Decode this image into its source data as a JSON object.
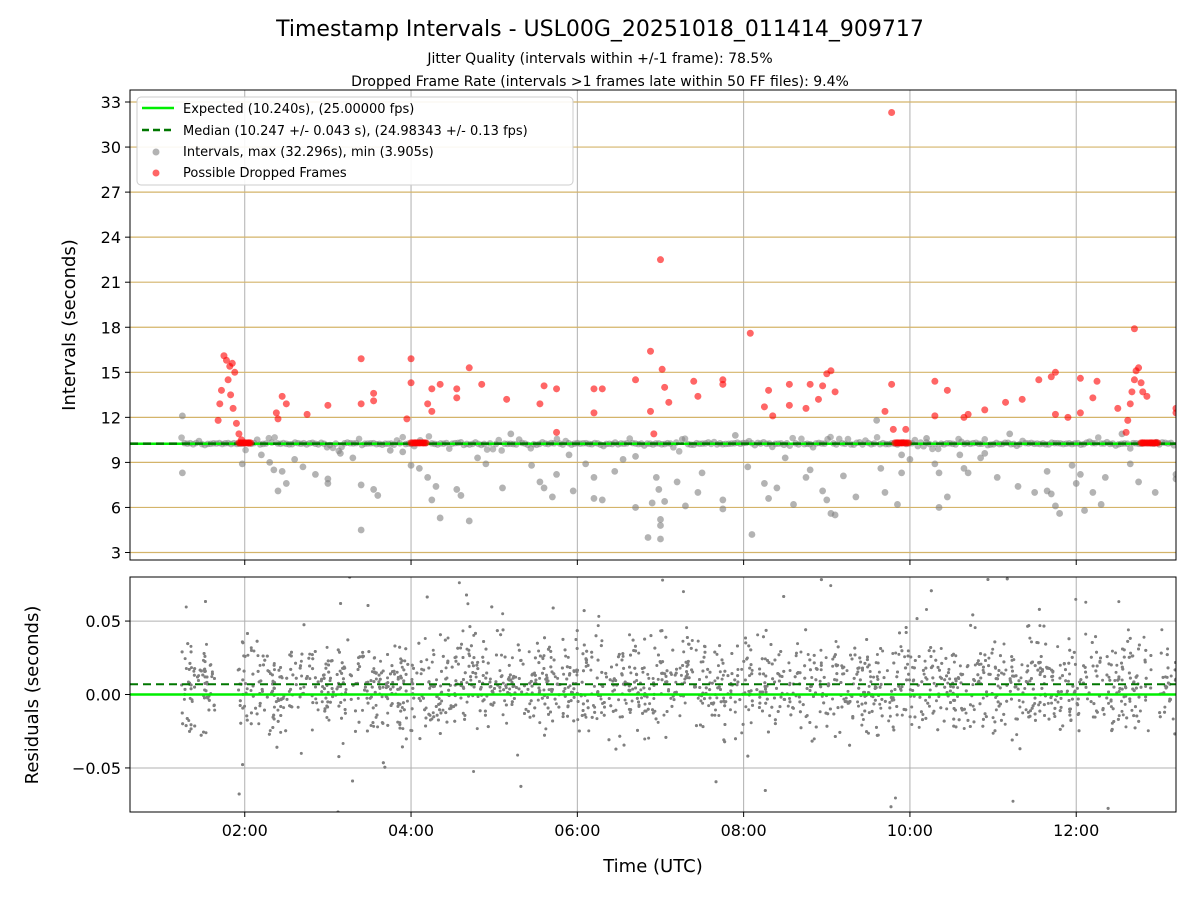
{
  "chart_data": {
    "type": "scatter",
    "title": "Timestamp Intervals - USL00G_20251018_011414_909717",
    "subtitle_lines": [
      "Jitter Quality (intervals within +/-1 frame): 78.5%",
      "Dropped Frame Rate (intervals >1 frames late within 50 FF files): 9.4%"
    ],
    "colors": {
      "expected": "#00ee00",
      "median": "#007700",
      "intervals": "#808080",
      "dropped": "#ff0000",
      "hgrid_top": "#d4b46a",
      "grid": "#b0b0b0"
    },
    "top_panel": {
      "ylabel": "Intervals (seconds)",
      "ylim": [
        2.5,
        33.8
      ],
      "yticks": [
        3,
        6,
        9,
        12,
        15,
        18,
        21,
        24,
        27,
        30,
        33
      ],
      "expected": 10.24,
      "median": 10.247,
      "legend_placement": "upper-left",
      "legend": {
        "expected": "Expected (10.240s), (25.00000 fps)",
        "median": "Median (10.247 +/- 0.043 s), (24.98343 +/- 0.13 fps)",
        "intervals": "Intervals, max (32.296s), min (3.905s)",
        "dropped": "Possible Dropped Frames"
      },
      "intervals_points": [
        [
          1.25,
          12.1
        ],
        [
          1.25,
          8.3
        ],
        [
          1.97,
          8.9
        ],
        [
          2.2,
          9.5
        ],
        [
          2.3,
          9.0
        ],
        [
          2.35,
          8.5
        ],
        [
          2.4,
          7.1
        ],
        [
          2.45,
          8.4
        ],
        [
          2.5,
          7.6
        ],
        [
          2.6,
          9.2
        ],
        [
          2.7,
          8.7
        ],
        [
          2.85,
          8.2
        ],
        [
          3.0,
          7.9
        ],
        [
          3.0,
          7.6
        ],
        [
          3.15,
          9.6
        ],
        [
          3.3,
          9.3
        ],
        [
          3.4,
          7.5
        ],
        [
          3.4,
          4.5
        ],
        [
          3.55,
          7.2
        ],
        [
          3.6,
          6.8
        ],
        [
          3.75,
          9.8
        ],
        [
          3.9,
          9.7
        ],
        [
          4.0,
          8.8
        ],
        [
          4.1,
          8.6
        ],
        [
          4.2,
          8.0
        ],
        [
          4.25,
          6.5
        ],
        [
          4.3,
          7.4
        ],
        [
          4.35,
          5.3
        ],
        [
          4.55,
          7.2
        ],
        [
          4.6,
          6.8
        ],
        [
          4.7,
          5.1
        ],
        [
          4.8,
          9.3
        ],
        [
          4.9,
          8.9
        ],
        [
          5.1,
          7.3
        ],
        [
          5.2,
          10.9
        ],
        [
          5.45,
          8.8
        ],
        [
          5.55,
          7.7
        ],
        [
          5.6,
          7.3
        ],
        [
          5.7,
          6.7
        ],
        [
          5.75,
          8.2
        ],
        [
          5.9,
          9.5
        ],
        [
          5.95,
          7.1
        ],
        [
          6.1,
          8.9
        ],
        [
          6.2,
          8.0
        ],
        [
          6.2,
          6.6
        ],
        [
          6.3,
          6.5
        ],
        [
          6.45,
          8.4
        ],
        [
          6.55,
          9.2
        ],
        [
          6.7,
          6.0
        ],
        [
          6.7,
          9.4
        ],
        [
          6.85,
          4.0
        ],
        [
          6.9,
          6.3
        ],
        [
          6.95,
          8.0
        ],
        [
          6.98,
          7.2
        ],
        [
          7.0,
          5.2
        ],
        [
          7.0,
          4.8
        ],
        [
          7.0,
          3.9
        ],
        [
          7.05,
          6.4
        ],
        [
          7.2,
          7.7
        ],
        [
          7.3,
          6.1
        ],
        [
          7.45,
          7.0
        ],
        [
          7.5,
          8.3
        ],
        [
          7.75,
          6.5
        ],
        [
          7.75,
          5.9
        ],
        [
          7.9,
          10.8
        ],
        [
          8.05,
          8.7
        ],
        [
          8.1,
          4.2
        ],
        [
          8.25,
          7.6
        ],
        [
          8.3,
          6.6
        ],
        [
          8.4,
          7.3
        ],
        [
          8.5,
          9.3
        ],
        [
          8.6,
          6.2
        ],
        [
          8.75,
          8.0
        ],
        [
          8.8,
          8.5
        ],
        [
          8.95,
          7.1
        ],
        [
          9.0,
          6.5
        ],
        [
          9.05,
          5.6
        ],
        [
          9.1,
          5.5
        ],
        [
          9.2,
          8.1
        ],
        [
          9.35,
          6.7
        ],
        [
          9.6,
          11.8
        ],
        [
          9.65,
          8.6
        ],
        [
          9.7,
          7.0
        ],
        [
          9.9,
          9.5
        ],
        [
          9.9,
          8.3
        ],
        [
          9.85,
          6.2
        ],
        [
          10.0,
          9.2
        ],
        [
          10.2,
          10.6
        ],
        [
          10.3,
          8.9
        ],
        [
          10.35,
          8.3
        ],
        [
          10.35,
          6.0
        ],
        [
          10.45,
          6.7
        ],
        [
          10.6,
          9.5
        ],
        [
          10.65,
          8.6
        ],
        [
          10.7,
          8.3
        ],
        [
          10.85,
          9.3
        ],
        [
          10.9,
          9.6
        ],
        [
          11.05,
          8.0
        ],
        [
          11.2,
          10.9
        ],
        [
          11.3,
          7.4
        ],
        [
          11.5,
          7.0
        ],
        [
          11.65,
          8.4
        ],
        [
          11.65,
          7.1
        ],
        [
          11.7,
          6.9
        ],
        [
          11.75,
          6.1
        ],
        [
          11.8,
          5.6
        ],
        [
          11.95,
          8.8
        ],
        [
          12.0,
          7.6
        ],
        [
          12.05,
          8.2
        ],
        [
          12.1,
          5.8
        ],
        [
          12.2,
          7.0
        ],
        [
          12.3,
          6.2
        ],
        [
          12.35,
          8.0
        ],
        [
          12.55,
          10.9
        ],
        [
          12.65,
          8.9
        ],
        [
          12.75,
          7.7
        ],
        [
          12.95,
          7.0
        ],
        [
          13.2,
          7.9
        ],
        [
          13.2,
          8.2
        ]
      ],
      "dropped_points": [
        [
          1.75,
          16.1
        ],
        [
          1.78,
          15.8
        ],
        [
          1.82,
          15.4
        ],
        [
          1.85,
          15.6
        ],
        [
          1.88,
          15.0
        ],
        [
          1.72,
          13.8
        ],
        [
          1.7,
          12.9
        ],
        [
          1.68,
          11.8
        ],
        [
          1.8,
          14.5
        ],
        [
          1.83,
          13.5
        ],
        [
          1.86,
          12.6
        ],
        [
          1.9,
          11.6
        ],
        [
          1.93,
          10.9
        ],
        [
          1.96,
          10.5
        ],
        [
          2.0,
          10.3
        ],
        [
          2.05,
          10.3
        ],
        [
          2.38,
          12.3
        ],
        [
          2.4,
          11.9
        ],
        [
          2.45,
          13.4
        ],
        [
          2.5,
          12.9
        ],
        [
          2.75,
          12.2
        ],
        [
          3.0,
          12.8
        ],
        [
          3.4,
          15.9
        ],
        [
          3.4,
          12.9
        ],
        [
          3.55,
          13.6
        ],
        [
          3.55,
          13.1
        ],
        [
          3.95,
          11.9
        ],
        [
          4.0,
          15.9
        ],
        [
          4.0,
          14.3
        ],
        [
          4.05,
          10.3
        ],
        [
          4.1,
          10.3
        ],
        [
          4.15,
          10.3
        ],
        [
          4.2,
          12.9
        ],
        [
          4.25,
          13.9
        ],
        [
          4.25,
          12.4
        ],
        [
          4.35,
          14.2
        ],
        [
          4.55,
          13.9
        ],
        [
          4.55,
          13.3
        ],
        [
          4.7,
          15.3
        ],
        [
          4.85,
          14.2
        ],
        [
          5.15,
          13.2
        ],
        [
          5.55,
          12.9
        ],
        [
          5.6,
          14.1
        ],
        [
          5.75,
          13.9
        ],
        [
          5.75,
          11.0
        ],
        [
          6.2,
          13.9
        ],
        [
          6.2,
          12.3
        ],
        [
          6.3,
          13.9
        ],
        [
          6.7,
          14.5
        ],
        [
          6.88,
          16.4
        ],
        [
          6.88,
          12.4
        ],
        [
          6.92,
          10.9
        ],
        [
          7.0,
          22.5
        ],
        [
          7.02,
          15.2
        ],
        [
          7.05,
          14.0
        ],
        [
          7.1,
          13.0
        ],
        [
          7.4,
          14.4
        ],
        [
          7.45,
          13.4
        ],
        [
          7.75,
          14.5
        ],
        [
          7.75,
          14.2
        ],
        [
          8.08,
          17.6
        ],
        [
          8.25,
          12.7
        ],
        [
          8.3,
          13.8
        ],
        [
          8.35,
          12.1
        ],
        [
          8.55,
          14.2
        ],
        [
          8.55,
          12.8
        ],
        [
          8.75,
          12.6
        ],
        [
          8.8,
          14.2
        ],
        [
          8.9,
          13.2
        ],
        [
          8.95,
          14.1
        ],
        [
          9.0,
          14.9
        ],
        [
          9.05,
          15.1
        ],
        [
          9.1,
          13.7
        ],
        [
          9.78,
          32.3
        ],
        [
          9.78,
          14.2
        ],
        [
          9.85,
          10.3
        ],
        [
          9.9,
          10.3
        ],
        [
          9.95,
          11.2
        ],
        [
          9.7,
          12.4
        ],
        [
          9.8,
          11.2
        ],
        [
          10.3,
          12.1
        ],
        [
          10.3,
          14.4
        ],
        [
          10.45,
          13.8
        ],
        [
          10.65,
          12.0
        ],
        [
          10.7,
          12.2
        ],
        [
          10.9,
          12.5
        ],
        [
          11.15,
          13.0
        ],
        [
          11.35,
          13.2
        ],
        [
          11.55,
          14.5
        ],
        [
          11.7,
          14.7
        ],
        [
          11.75,
          15.0
        ],
        [
          11.75,
          12.2
        ],
        [
          11.9,
          12.0
        ],
        [
          12.05,
          12.3
        ],
        [
          12.05,
          14.6
        ],
        [
          12.2,
          13.3
        ],
        [
          12.25,
          14.4
        ],
        [
          12.5,
          12.6
        ],
        [
          12.6,
          11.0
        ],
        [
          12.62,
          11.8
        ],
        [
          12.65,
          12.9
        ],
        [
          12.67,
          13.7
        ],
        [
          12.7,
          14.5
        ],
        [
          12.72,
          15.1
        ],
        [
          12.75,
          15.3
        ],
        [
          12.7,
          17.9
        ],
        [
          12.78,
          14.3
        ],
        [
          12.8,
          13.7
        ],
        [
          12.85,
          13.4
        ],
        [
          12.8,
          10.3
        ],
        [
          12.9,
          10.3
        ],
        [
          12.95,
          10.3
        ],
        [
          13.2,
          12.6
        ],
        [
          13.2,
          12.3
        ]
      ],
      "dropped_flat_runs": [
        [
          1.93,
          2.08
        ],
        [
          4.0,
          4.18
        ],
        [
          9.82,
          9.98
        ],
        [
          12.78,
          12.98
        ]
      ]
    },
    "bottom_panel": {
      "ylabel": "Residuals (seconds)",
      "ylim": [
        -0.08,
        0.08
      ],
      "yticks": [
        0.05,
        0.0,
        -0.05
      ],
      "ytick_labels": [
        "0.05",
        "0.00",
        "−0.05"
      ],
      "expected": 0.0,
      "median": 0.007,
      "point_count": 3200,
      "residual_spread": 0.022,
      "gaps_hours": [
        [
          1.65,
          1.92
        ],
        [
          12.9,
          12.98
        ]
      ]
    },
    "x_axis": {
      "xlabel": "Time (UTC)",
      "xlim": [
        0.62,
        13.2
      ],
      "data_start": 1.24,
      "data_end": 13.2,
      "xticks": [
        2,
        4,
        6,
        8,
        10,
        12
      ],
      "xtick_labels": [
        "02:00",
        "04:00",
        "06:00",
        "08:00",
        "10:00",
        "12:00"
      ]
    }
  }
}
